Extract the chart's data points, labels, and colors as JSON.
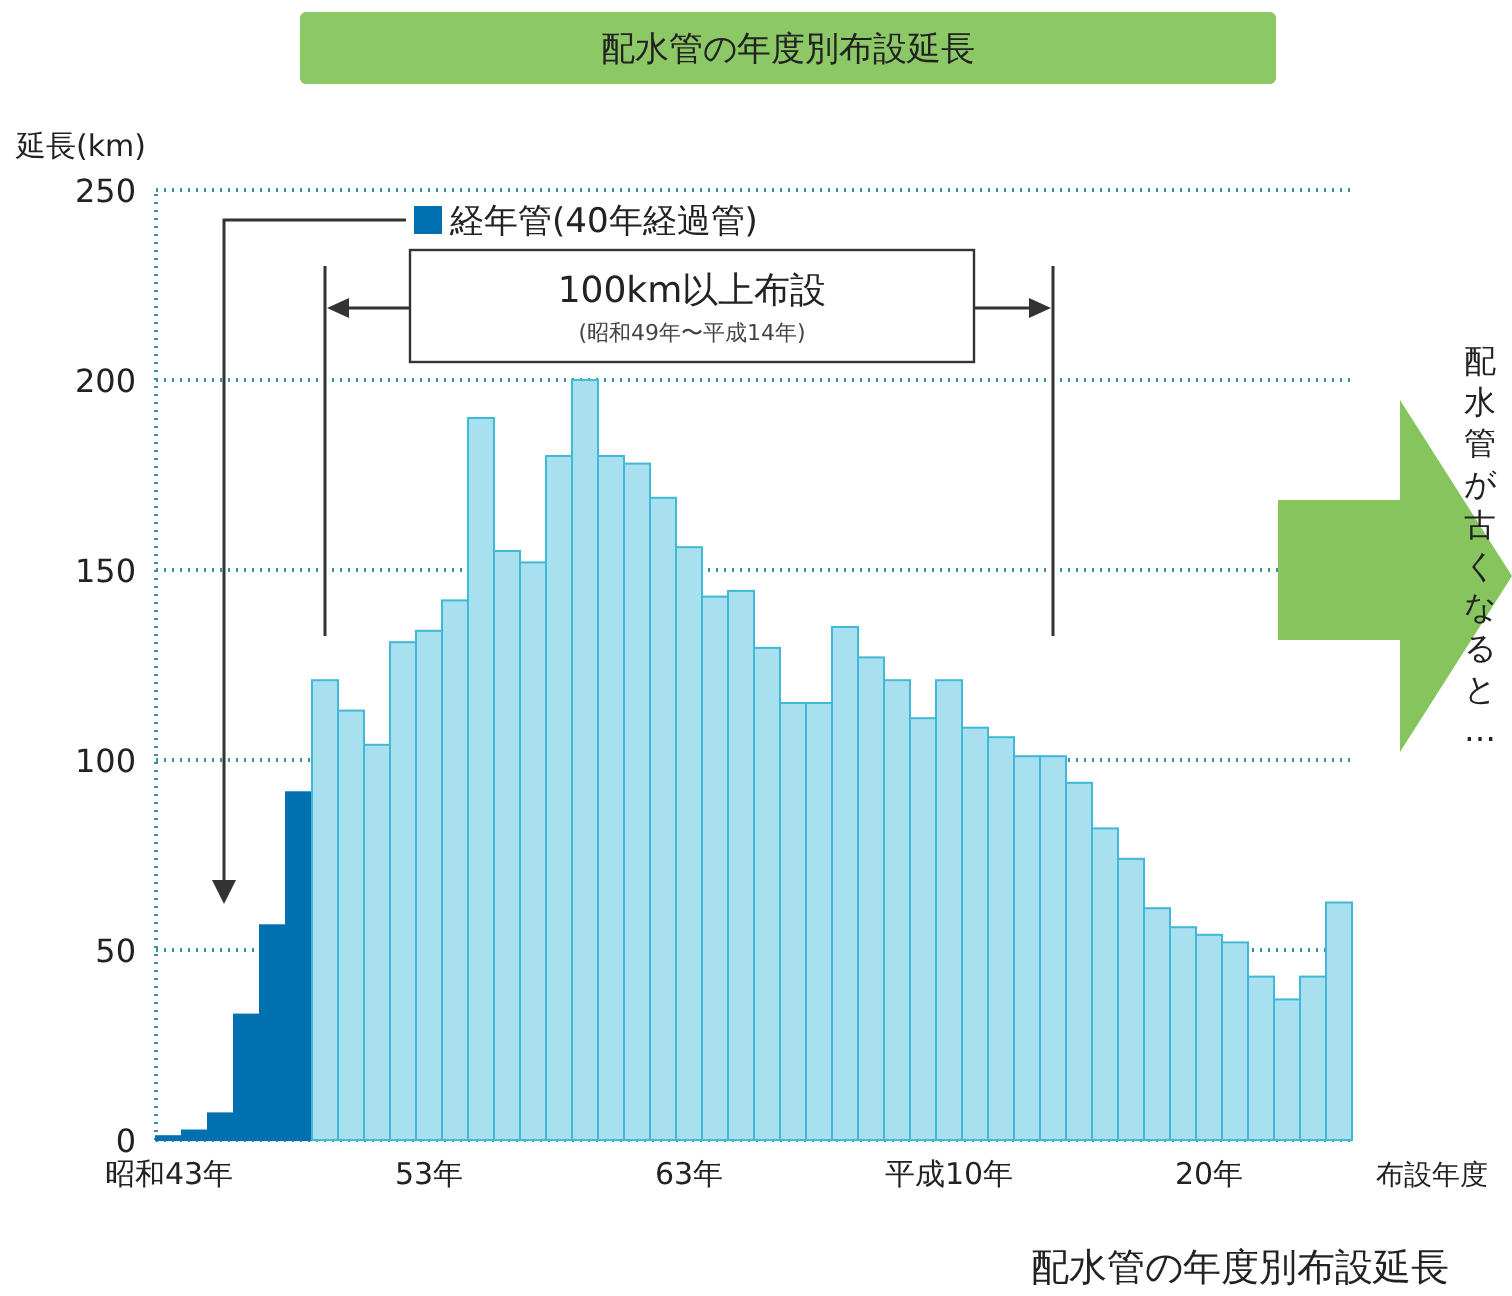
{
  "chart_data": {
    "type": "bar",
    "title": "配水管の年度別布設延長",
    "ylabel": "延長(km)",
    "xlabel": "布設年度",
    "categories": [
      "昭和43年",
      null,
      null,
      null,
      null,
      null,
      null,
      null,
      null,
      null,
      "53年",
      null,
      null,
      null,
      null,
      null,
      null,
      null,
      null,
      null,
      "63年",
      null,
      null,
      null,
      null,
      null,
      null,
      null,
      null,
      null,
      "平成10年",
      null,
      null,
      null,
      null,
      null,
      null,
      null,
      null,
      null,
      "20年",
      null,
      null,
      null,
      null,
      null
    ],
    "series": [
      {
        "name": "経年管(40年経過管)",
        "color": "#0070b0",
        "values": [
          1,
          2.5,
          7,
          33,
          56.5,
          91.5,
          null,
          null,
          null,
          null,
          null,
          null,
          null,
          null,
          null,
          null,
          null,
          null,
          null,
          null,
          null,
          null,
          null,
          null,
          null,
          null,
          null,
          null,
          null,
          null,
          null,
          null,
          null,
          null,
          null,
          null,
          null,
          null,
          null,
          null,
          null,
          null,
          null,
          null,
          null,
          null
        ]
      },
      {
        "color": "#a8e0f0",
        "values": [
          null,
          null,
          null,
          null,
          null,
          null,
          121,
          113,
          104,
          131,
          134,
          142,
          190,
          155,
          152,
          180,
          200,
          180,
          178,
          169,
          156,
          143,
          144.5,
          129.5,
          115,
          115,
          135,
          127,
          121,
          111,
          121,
          108.5,
          106,
          101,
          101,
          94,
          82,
          74,
          61,
          56,
          54,
          52,
          43,
          37,
          43,
          62.5
        ]
      }
    ],
    "ylim": [
      0,
      250
    ],
    "yticks": [
      0,
      50,
      100,
      150,
      200,
      250
    ],
    "grid": "y",
    "legend": "top",
    "annotations": [
      "100km以上布設",
      "(昭和49年〜平成14年)",
      "配水管が古くなると…",
      "配水管の年度別布設延長"
    ]
  }
}
